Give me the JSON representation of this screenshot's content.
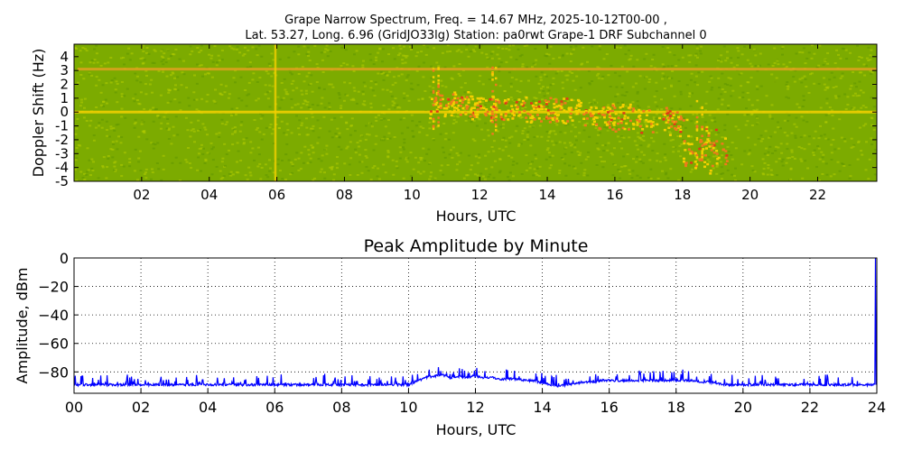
{
  "figure": {
    "title_line1": "Grape Narrow Spectrum, Freq. = 14.67 MHz, 2025-10-12T00-00 ,",
    "title_line2": "Lat.  53.27, Long.   6.96 (GridJO33lg) Station: pa0rwt Grape-1 DRF Subchannel 0"
  },
  "chart_data": [
    {
      "type": "heatmap",
      "title": "",
      "xlabel": "Hours, UTC",
      "ylabel": "Doppler Shift (Hz)",
      "xlim": [
        0,
        23.75
      ],
      "ylim": [
        -5,
        4.9
      ],
      "x_ticks": [
        "02",
        "04",
        "06",
        "08",
        "10",
        "12",
        "14",
        "16",
        "18",
        "20",
        "22"
      ],
      "x_tick_values": [
        2,
        4,
        6,
        8,
        10,
        12,
        14,
        16,
        18,
        20,
        22
      ],
      "y_ticks": [
        "4",
        "3",
        "2",
        "1",
        "0",
        "-1",
        "-2",
        "-3",
        "-4",
        "-5"
      ],
      "y_tick_values": [
        4,
        3,
        2,
        1,
        0,
        -1,
        -2,
        -3,
        -4,
        -5
      ],
      "colors": {
        "background": "#7cab00",
        "noise_light": "#b2cc00",
        "line": "#f4d000",
        "strong": "#f07a1c",
        "peak": "#e03a18"
      },
      "features": [
        {
          "name": "carrier",
          "doppler_hz": 0,
          "x_start": 0,
          "x_end": 23.75
        },
        {
          "name": "reference line",
          "doppler_hz": 3.1,
          "x_start": 0.1,
          "x_end": 23.75
        },
        {
          "name": "vertical artifact",
          "hour": 5.95
        },
        {
          "name": "spread signal",
          "x_start": 10.5,
          "x_end": 19.3
        }
      ]
    },
    {
      "type": "line",
      "title": "Peak Amplitude by Minute",
      "xlabel": "Hours, UTC",
      "ylabel": "Amplitude, dBm",
      "xlim": [
        0,
        24
      ],
      "ylim": [
        -95,
        0
      ],
      "grid": true,
      "x_ticks": [
        "00",
        "02",
        "04",
        "06",
        "08",
        "10",
        "12",
        "14",
        "16",
        "18",
        "20",
        "22",
        "24"
      ],
      "x_tick_values": [
        0,
        2,
        4,
        6,
        8,
        10,
        12,
        14,
        16,
        18,
        20,
        22,
        24
      ],
      "y_ticks": [
        "0",
        "−20",
        "−40",
        "−60",
        "−80"
      ],
      "y_tick_values": [
        0,
        -20,
        -40,
        -60,
        -80
      ],
      "series": [
        {
          "color": "#0000ff",
          "x": [
            0,
            0.5,
            1,
            1.5,
            2,
            2.5,
            3,
            3.5,
            4,
            4.5,
            5,
            5.5,
            6,
            6.5,
            7,
            7.5,
            8,
            8.5,
            9,
            9.5,
            10,
            10.5,
            10.75,
            11,
            11.25,
            11.5,
            11.75,
            12,
            12.25,
            12.5,
            12.75,
            13,
            13.25,
            13.5,
            13.75,
            14,
            14.25,
            14.5,
            14.75,
            15,
            15.25,
            15.5,
            15.75,
            16,
            16.25,
            16.5,
            16.75,
            17,
            17.25,
            17.5,
            17.75,
            18,
            18.25,
            18.5,
            18.75,
            19,
            19.25,
            19.5,
            19.75,
            20,
            20.5,
            21,
            21.5,
            22,
            22.5,
            23,
            23.5,
            23.9,
            23.95,
            24
          ],
          "y": [
            -89,
            -89,
            -89,
            -89,
            -89,
            -89,
            -89,
            -89,
            -89,
            -89,
            -89,
            -89,
            -89,
            -89,
            -89,
            -89,
            -89,
            -89,
            -89,
            -89,
            -89,
            -84,
            -83,
            -82,
            -84,
            -83,
            -84,
            -83,
            -84,
            -84,
            -85,
            -85,
            -85,
            -86,
            -86,
            -88,
            -89,
            -90,
            -89,
            -88,
            -87,
            -87,
            -86,
            -86,
            -86,
            -86,
            -86,
            -86,
            -86,
            -86,
            -86,
            -86,
            -86,
            -86,
            -87,
            -87,
            -88,
            -89,
            -89,
            -89,
            -89,
            -89,
            -89,
            -89,
            -89,
            -89,
            -89,
            -89,
            0,
            -89
          ],
          "spike_amplitude_db": 7
        }
      ]
    }
  ]
}
